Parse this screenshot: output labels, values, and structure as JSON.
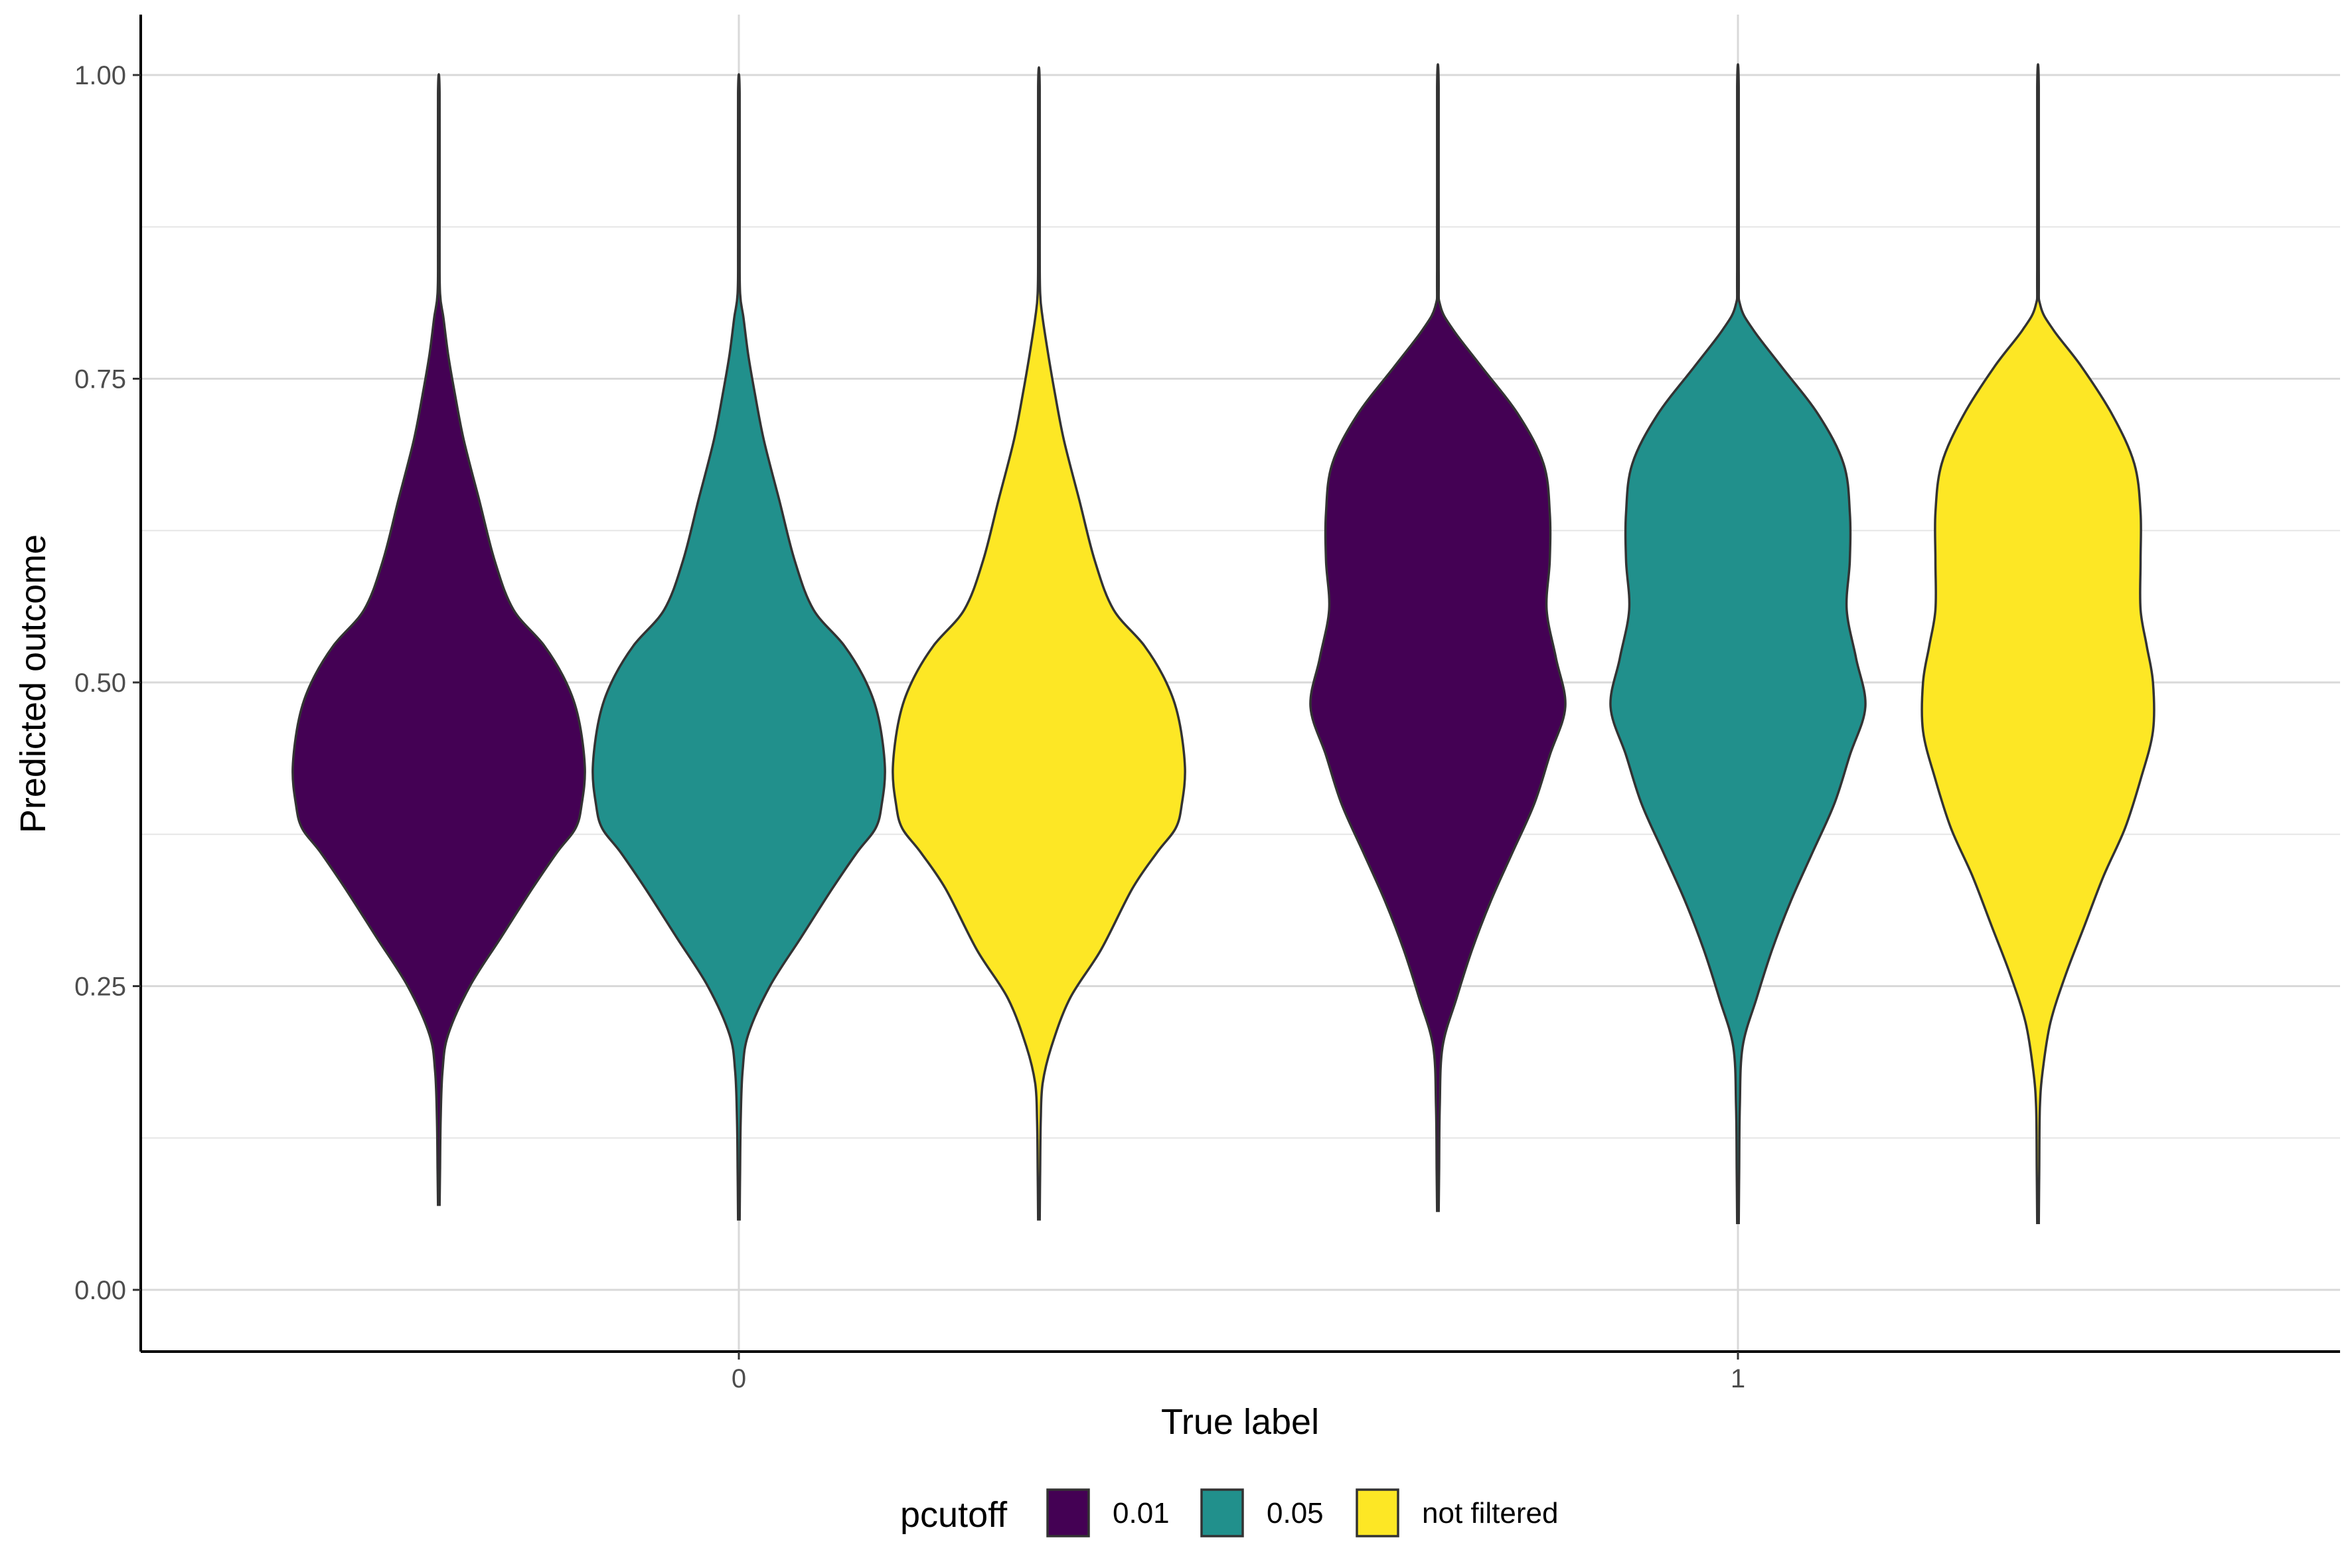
{
  "chart_data": {
    "type": "violin",
    "xlabel": "True label",
    "ylabel": "Predicted outcome",
    "categories": [
      "0",
      "1"
    ],
    "ylim": [
      -0.05,
      1.05
    ],
    "yticks": [
      "0.00",
      "0.25",
      "0.50",
      "0.75",
      "1.00"
    ],
    "grid": true,
    "legend": {
      "title": "pcutoff",
      "position": "bottom",
      "entries": [
        "0.01",
        "0.05",
        "not filtered"
      ]
    },
    "colors": {
      "0.01": "#440154",
      "0.05": "#21908C",
      "not filtered": "#FDE725",
      "outline": "#333333"
    },
    "series": [
      {
        "name": "0.01",
        "groups": [
          {
            "category": "0",
            "min": 0.07,
            "max": 0.985,
            "profile": [
              [
                0.07,
                0.0
              ],
              [
                0.1,
                0.004
              ],
              [
                0.14,
                0.006
              ],
              [
                0.18,
                0.012
              ],
              [
                0.21,
                0.03
              ],
              [
                0.25,
                0.1
              ],
              [
                0.29,
                0.2
              ],
              [
                0.33,
                0.3
              ],
              [
                0.36,
                0.38
              ],
              [
                0.38,
                0.44
              ],
              [
                0.4,
                0.46
              ],
              [
                0.43,
                0.47
              ],
              [
                0.47,
                0.45
              ],
              [
                0.5,
                0.41
              ],
              [
                0.53,
                0.34
              ],
              [
                0.56,
                0.24
              ],
              [
                0.6,
                0.18
              ],
              [
                0.65,
                0.13
              ],
              [
                0.7,
                0.08
              ],
              [
                0.74,
                0.05
              ],
              [
                0.77,
                0.03
              ],
              [
                0.8,
                0.015
              ],
              [
                0.82,
                0.004
              ],
              [
                0.86,
                0.002
              ],
              [
                0.985,
                0.0
              ]
            ]
          },
          {
            "category": "1",
            "min": 0.065,
            "max": 0.99,
            "profile": [
              [
                0.065,
                0.0
              ],
              [
                0.1,
                0.004
              ],
              [
                0.15,
                0.006
              ],
              [
                0.2,
                0.015
              ],
              [
                0.24,
                0.06
              ],
              [
                0.28,
                0.11
              ],
              [
                0.32,
                0.17
              ],
              [
                0.36,
                0.24
              ],
              [
                0.4,
                0.31
              ],
              [
                0.44,
                0.36
              ],
              [
                0.48,
                0.41
              ],
              [
                0.52,
                0.38
              ],
              [
                0.56,
                0.35
              ],
              [
                0.6,
                0.36
              ],
              [
                0.64,
                0.36
              ],
              [
                0.68,
                0.34
              ],
              [
                0.72,
                0.26
              ],
              [
                0.76,
                0.14
              ],
              [
                0.79,
                0.05
              ],
              [
                0.81,
                0.008
              ],
              [
                0.84,
                0.002
              ],
              [
                0.99,
                0.0
              ]
            ]
          }
        ]
      },
      {
        "name": "0.05",
        "groups": [
          {
            "category": "0",
            "min": 0.058,
            "max": 0.985,
            "profile": [
              [
                0.058,
                0.0
              ],
              [
                0.1,
                0.004
              ],
              [
                0.14,
                0.006
              ],
              [
                0.18,
                0.012
              ],
              [
                0.21,
                0.03
              ],
              [
                0.25,
                0.1
              ],
              [
                0.29,
                0.2
              ],
              [
                0.33,
                0.3
              ],
              [
                0.36,
                0.38
              ],
              [
                0.38,
                0.44
              ],
              [
                0.4,
                0.46
              ],
              [
                0.43,
                0.47
              ],
              [
                0.47,
                0.45
              ],
              [
                0.5,
                0.41
              ],
              [
                0.53,
                0.34
              ],
              [
                0.56,
                0.24
              ],
              [
                0.6,
                0.18
              ],
              [
                0.65,
                0.13
              ],
              [
                0.7,
                0.08
              ],
              [
                0.74,
                0.05
              ],
              [
                0.77,
                0.03
              ],
              [
                0.8,
                0.015
              ],
              [
                0.82,
                0.004
              ],
              [
                0.86,
                0.002
              ],
              [
                0.985,
                0.0
              ]
            ]
          },
          {
            "category": "1",
            "min": 0.055,
            "max": 0.99,
            "profile": [
              [
                0.055,
                0.0
              ],
              [
                0.1,
                0.004
              ],
              [
                0.15,
                0.006
              ],
              [
                0.2,
                0.015
              ],
              [
                0.24,
                0.06
              ],
              [
                0.28,
                0.11
              ],
              [
                0.32,
                0.17
              ],
              [
                0.36,
                0.24
              ],
              [
                0.4,
                0.31
              ],
              [
                0.44,
                0.36
              ],
              [
                0.48,
                0.41
              ],
              [
                0.52,
                0.38
              ],
              [
                0.56,
                0.35
              ],
              [
                0.6,
                0.36
              ],
              [
                0.64,
                0.36
              ],
              [
                0.68,
                0.34
              ],
              [
                0.72,
                0.26
              ],
              [
                0.76,
                0.14
              ],
              [
                0.79,
                0.05
              ],
              [
                0.81,
                0.008
              ],
              [
                0.84,
                0.002
              ],
              [
                0.99,
                0.0
              ]
            ]
          }
        ]
      },
      {
        "name": "not filtered",
        "groups": [
          {
            "category": "0",
            "min": 0.058,
            "max": 0.99,
            "profile": [
              [
                0.058,
                0.0
              ],
              [
                0.1,
                0.004
              ],
              [
                0.14,
                0.006
              ],
              [
                0.17,
                0.012
              ],
              [
                0.2,
                0.04
              ],
              [
                0.24,
                0.1
              ],
              [
                0.28,
                0.2
              ],
              [
                0.33,
                0.3
              ],
              [
                0.36,
                0.38
              ],
              [
                0.38,
                0.44
              ],
              [
                0.4,
                0.46
              ],
              [
                0.43,
                0.47
              ],
              [
                0.47,
                0.45
              ],
              [
                0.5,
                0.41
              ],
              [
                0.53,
                0.34
              ],
              [
                0.56,
                0.24
              ],
              [
                0.6,
                0.18
              ],
              [
                0.65,
                0.13
              ],
              [
                0.7,
                0.08
              ],
              [
                0.74,
                0.05
              ],
              [
                0.77,
                0.03
              ],
              [
                0.8,
                0.012
              ],
              [
                0.82,
                0.004
              ],
              [
                0.86,
                0.002
              ],
              [
                0.99,
                0.0
              ]
            ]
          },
          {
            "category": "1",
            "min": 0.055,
            "max": 0.99,
            "profile": [
              [
                0.055,
                0.0
              ],
              [
                0.1,
                0.004
              ],
              [
                0.15,
                0.006
              ],
              [
                0.18,
                0.015
              ],
              [
                0.22,
                0.04
              ],
              [
                0.26,
                0.09
              ],
              [
                0.3,
                0.15
              ],
              [
                0.34,
                0.21
              ],
              [
                0.38,
                0.28
              ],
              [
                0.42,
                0.33
              ],
              [
                0.46,
                0.37
              ],
              [
                0.5,
                0.37
              ],
              [
                0.53,
                0.35
              ],
              [
                0.56,
                0.33
              ],
              [
                0.6,
                0.33
              ],
              [
                0.64,
                0.33
              ],
              [
                0.68,
                0.31
              ],
              [
                0.72,
                0.24
              ],
              [
                0.76,
                0.14
              ],
              [
                0.79,
                0.05
              ],
              [
                0.81,
                0.008
              ],
              [
                0.84,
                0.002
              ],
              [
                0.99,
                0.0
              ]
            ]
          }
        ]
      }
    ]
  }
}
